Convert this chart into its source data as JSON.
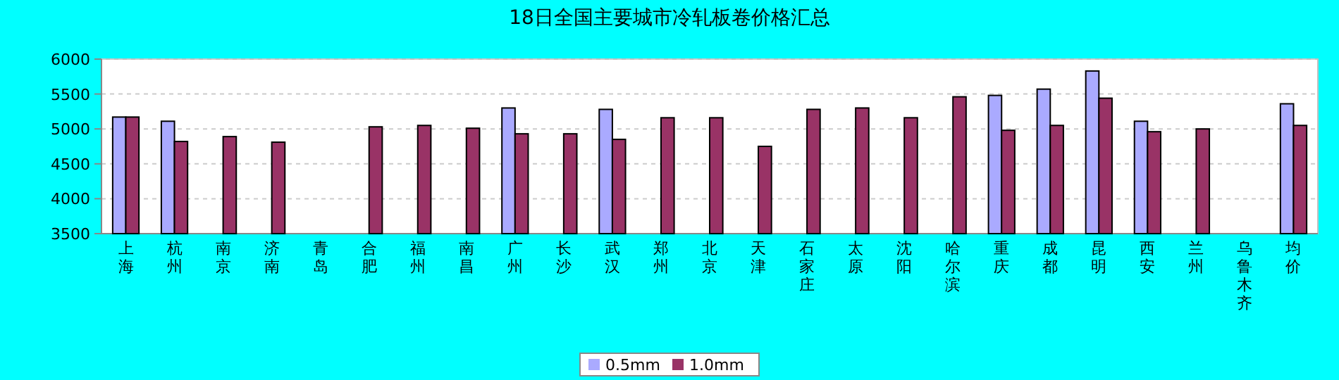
{
  "chart_data": {
    "type": "bar",
    "title": "18日全国主要城市冷轧板卷价格汇总",
    "categories": [
      "上海",
      "杭州",
      "南京",
      "济南",
      "青岛",
      "合肥",
      "福州",
      "南昌",
      "广州",
      "长沙",
      "武汉",
      "郑州",
      "北京",
      "天津",
      "石家庄",
      "太原",
      "沈阳",
      "哈尔滨",
      "重庆",
      "成都",
      "昆明",
      "西安",
      "兰州",
      "乌鲁木齐",
      "均价"
    ],
    "series": [
      {
        "name": "0.5mm",
        "color": "#aaaaff",
        "values": [
          5170,
          5110,
          null,
          null,
          null,
          null,
          null,
          null,
          5300,
          null,
          5280,
          null,
          null,
          null,
          null,
          null,
          null,
          null,
          5480,
          5570,
          5830,
          5110,
          null,
          null,
          5360
        ]
      },
      {
        "name": "1.0mm",
        "color": "#993366",
        "values": [
          5170,
          4820,
          4890,
          4810,
          null,
          5030,
          5050,
          5010,
          4930,
          4930,
          4850,
          5160,
          5160,
          4750,
          5280,
          5300,
          5160,
          5460,
          4980,
          5050,
          5440,
          4960,
          5000,
          null,
          5050
        ]
      }
    ],
    "ylim": [
      3500,
      6000
    ],
    "yticks": [
      3500,
      4000,
      4500,
      5000,
      5500,
      6000
    ],
    "grid": "y",
    "legend": "bottom"
  }
}
